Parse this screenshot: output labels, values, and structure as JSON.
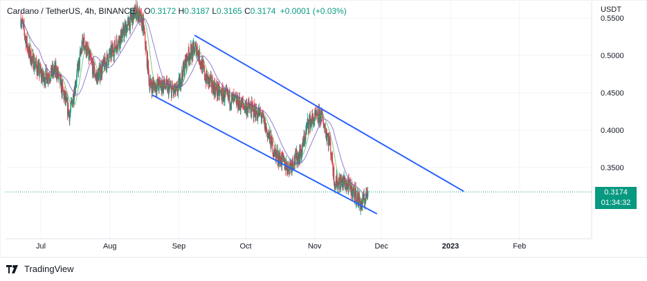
{
  "header": {
    "symbol": "Cardano / TetherUS, 4h, BINANCE",
    "open_label": "O",
    "open": "0.3172",
    "high_label": "H",
    "high": "0.3187",
    "low_label": "L",
    "low": "0.3165",
    "close_label": "C",
    "close": "0.3174",
    "change": "+0.0001 (+0.03%)"
  },
  "axis": {
    "unit": "USDT",
    "y_ticks": [
      "0.3500",
      "0.4000",
      "0.4500",
      "0.5000",
      "0.5500"
    ],
    "x_ticks": [
      "Jul",
      "Aug",
      "Sep",
      "Oct",
      "Nov",
      "Dec",
      "2023",
      "Feb"
    ]
  },
  "price_tag": {
    "price": "0.3174",
    "countdown": "01:34:32"
  },
  "brand": {
    "name": "TradingView"
  },
  "colors": {
    "up": "#089981",
    "down": "#f23645",
    "channel": "#2962ff",
    "ma_fast": "#4caf50",
    "ma_slow": "#7e57c2",
    "last_price_line": "#089981"
  },
  "chart_data": {
    "type": "candlestick",
    "symbol": "ADA/USDT",
    "interval": "4h",
    "ylim": [
      0.285,
      0.565
    ],
    "y_scale": "linear",
    "grid": true,
    "last_price": 0.3174,
    "price_path": [
      [
        "2022-06-22",
        0.55
      ],
      [
        "2022-06-26",
        0.5
      ],
      [
        "2022-07-02",
        0.47
      ],
      [
        "2022-07-08",
        0.48
      ],
      [
        "2022-07-14",
        0.42
      ],
      [
        "2022-07-20",
        0.52
      ],
      [
        "2022-07-26",
        0.47
      ],
      [
        "2022-08-01",
        0.5
      ],
      [
        "2022-08-07",
        0.53
      ],
      [
        "2022-08-13",
        0.56
      ],
      [
        "2022-08-16",
        0.54
      ],
      [
        "2022-08-19",
        0.46
      ],
      [
        "2022-08-25",
        0.46
      ],
      [
        "2022-08-31",
        0.45
      ],
      [
        "2022-09-05",
        0.5
      ],
      [
        "2022-09-09",
        0.51
      ],
      [
        "2022-09-13",
        0.47
      ],
      [
        "2022-09-19",
        0.45
      ],
      [
        "2022-09-25",
        0.44
      ],
      [
        "2022-10-02",
        0.43
      ],
      [
        "2022-10-08",
        0.42
      ],
      [
        "2022-10-14",
        0.37
      ],
      [
        "2022-10-20",
        0.35
      ],
      [
        "2022-10-26",
        0.37
      ],
      [
        "2022-10-29",
        0.41
      ],
      [
        "2022-11-04",
        0.42
      ],
      [
        "2022-11-08",
        0.38
      ],
      [
        "2022-11-10",
        0.33
      ],
      [
        "2022-11-14",
        0.33
      ],
      [
        "2022-11-18",
        0.32
      ],
      [
        "2022-11-22",
        0.3
      ],
      [
        "2022-11-25",
        0.3174
      ]
    ],
    "channel": {
      "upper": [
        [
          "2022-09-08",
          0.527
        ],
        [
          "2023-01-07",
          0.318
        ]
      ],
      "lower": [
        [
          "2022-08-20",
          0.447
        ],
        [
          "2022-11-29",
          0.288
        ]
      ]
    }
  }
}
